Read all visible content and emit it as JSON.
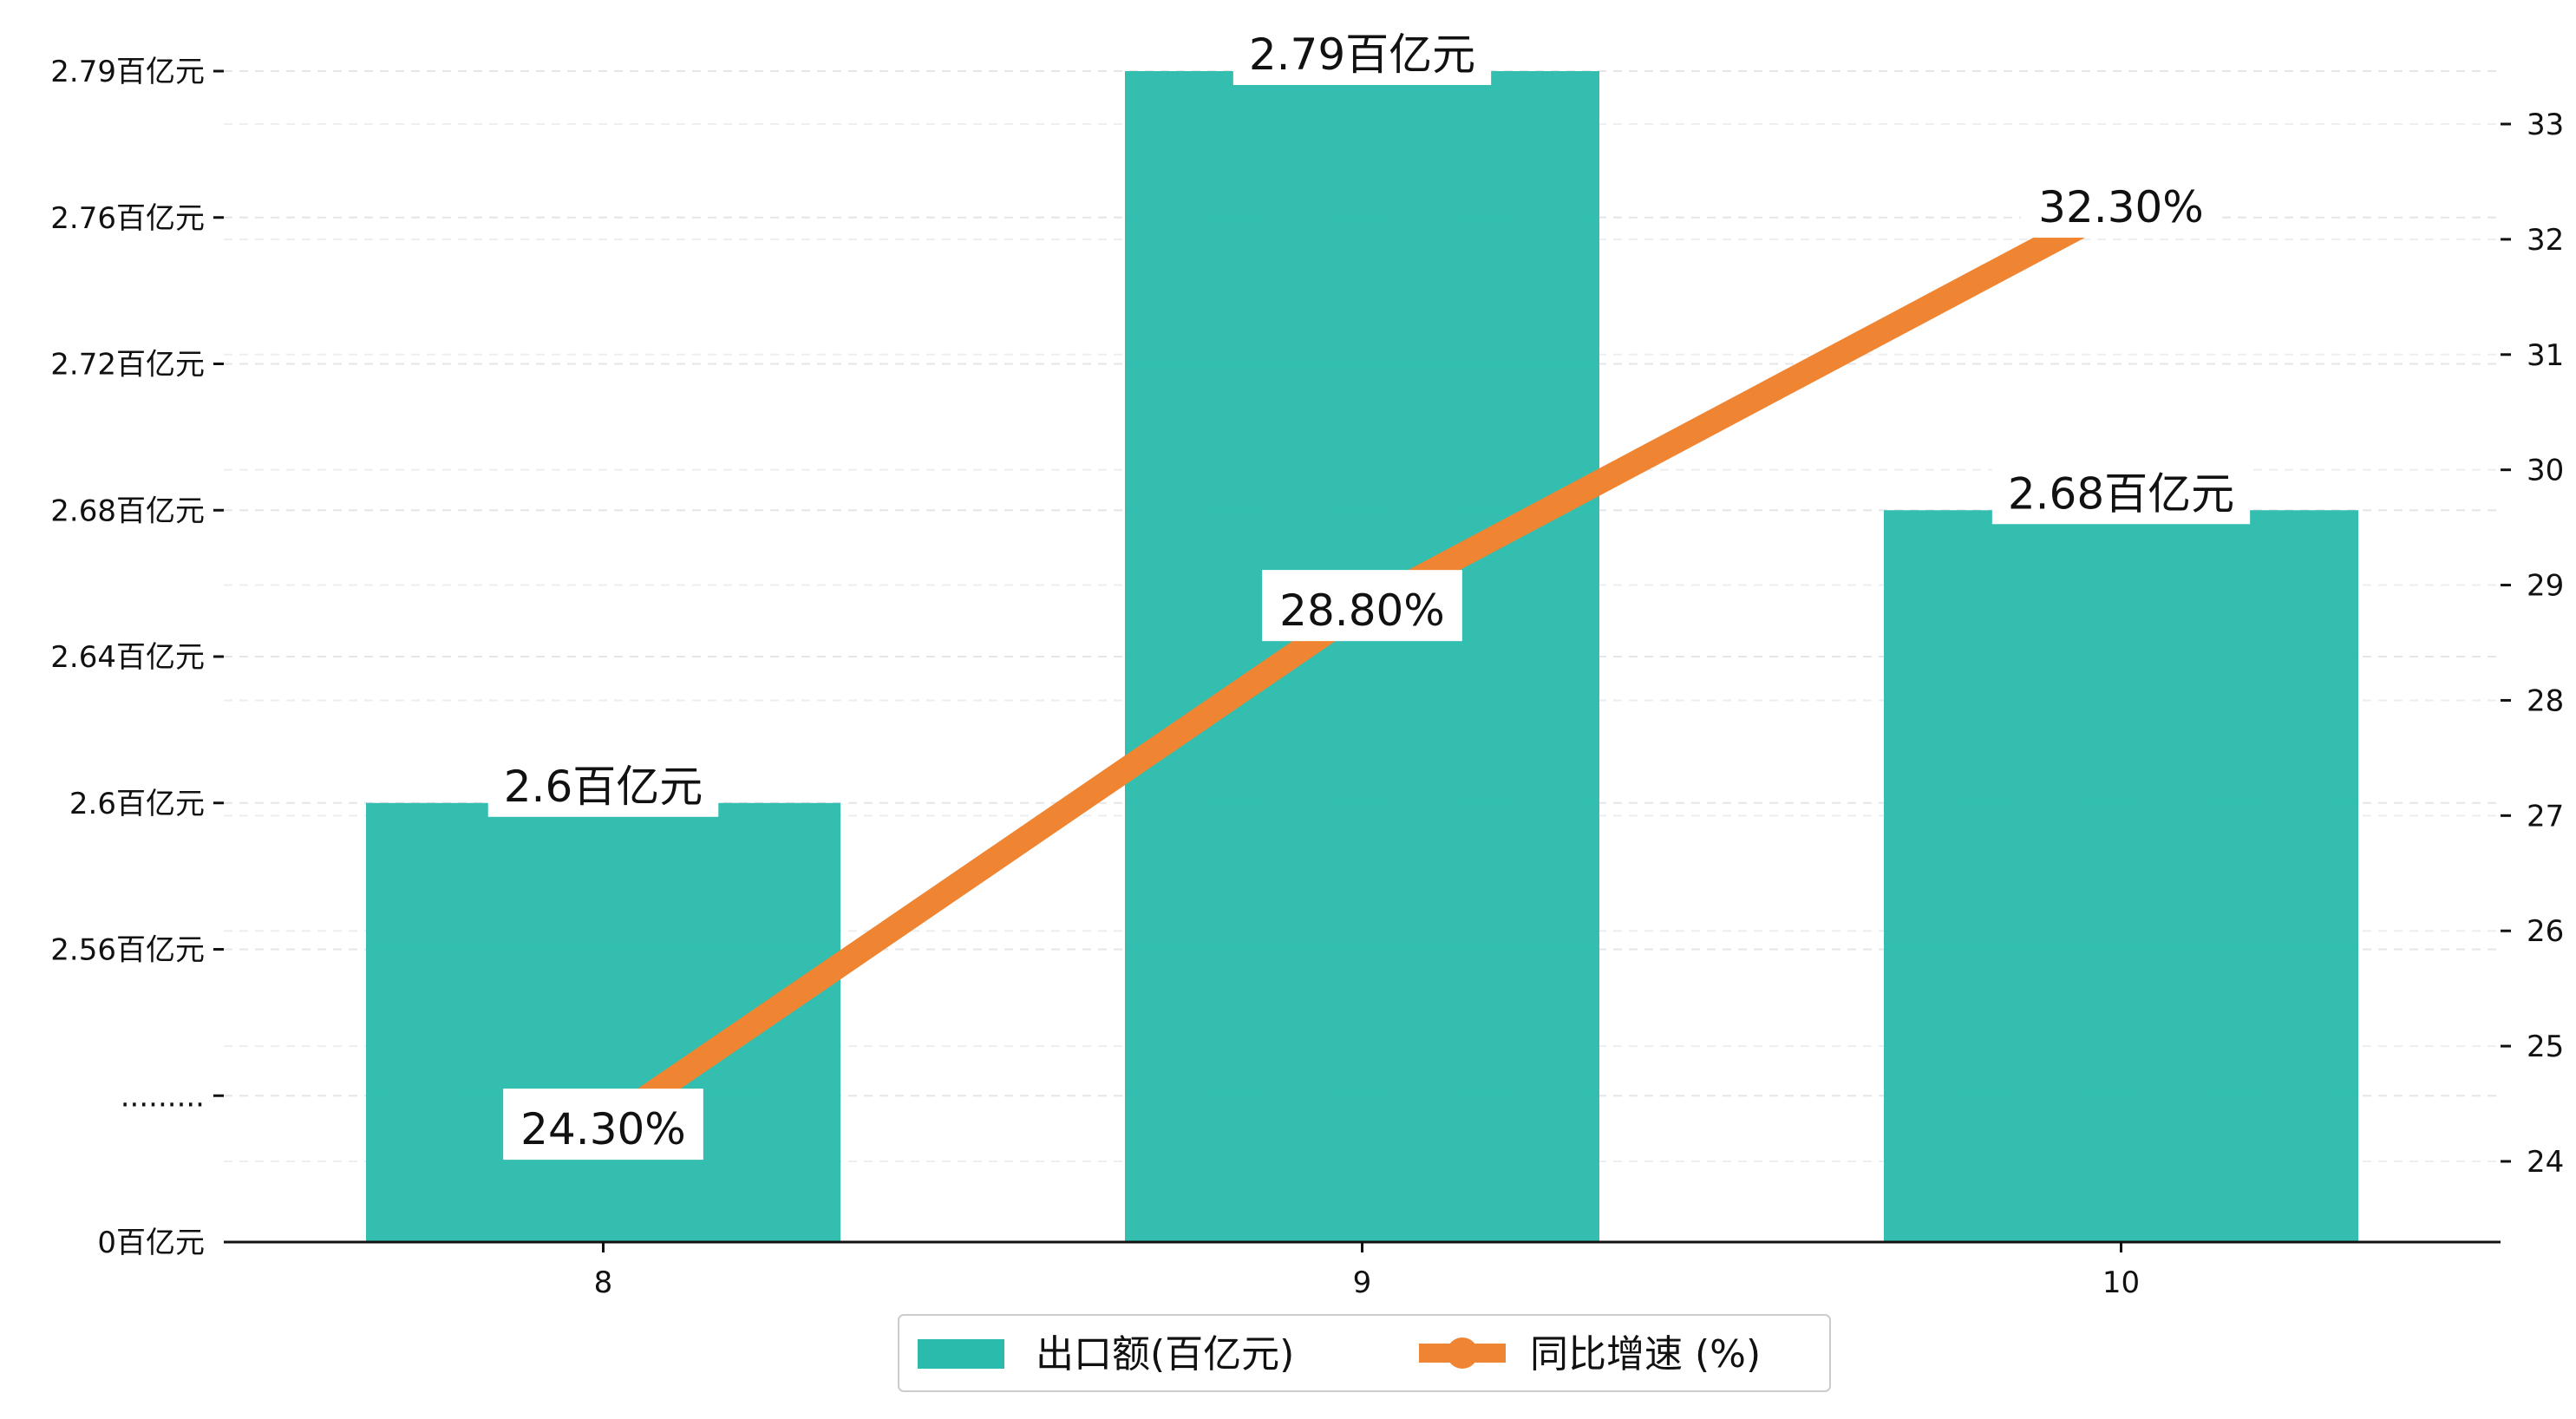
{
  "chart_data": {
    "type": "bar",
    "categories": [
      "8",
      "9",
      "10"
    ],
    "series": [
      {
        "name": "出口额(百亿元)",
        "type": "bar",
        "axis": "left",
        "values": [
          2.6,
          2.79,
          2.68
        ],
        "labels": [
          "2.6百亿元",
          "2.79百亿元",
          "2.68百亿元"
        ],
        "color": "#2bbbad"
      },
      {
        "name": "同比增速 (%)",
        "type": "line",
        "axis": "right",
        "values": [
          24.3,
          28.8,
          32.3
        ],
        "labels": [
          "24.30%",
          "28.80%",
          "32.30%"
        ],
        "color": "#ef8532"
      }
    ],
    "y_left": {
      "ticks": [
        {
          "value": 0,
          "label": "0百亿元"
        },
        {
          "value": 2.53,
          "label": "........."
        },
        {
          "value": 2.56,
          "label": "2.56百亿元"
        },
        {
          "value": 2.6,
          "label": "2.6百亿元"
        },
        {
          "value": 2.64,
          "label": "2.64百亿元"
        },
        {
          "value": 2.68,
          "label": "2.68百亿元"
        },
        {
          "value": 2.72,
          "label": "2.72百亿元"
        },
        {
          "value": 2.76,
          "label": "2.76百亿元"
        },
        {
          "value": 2.79,
          "label": "2.79百亿元"
        }
      ],
      "broken_axis": true
    },
    "y_right": {
      "ylim": [
        23.3,
        33.7
      ],
      "ticks": [
        24,
        25,
        26,
        27,
        28,
        29,
        30,
        31,
        32,
        33
      ]
    },
    "grid": true,
    "legend_position": "bottom-center"
  }
}
